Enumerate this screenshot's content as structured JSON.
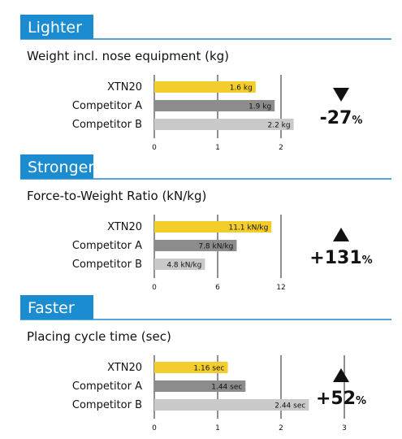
{
  "chart_data": [
    {
      "type": "bar",
      "title": "Lighter",
      "subtitle": "Weight incl. nose equipment (kg)",
      "categories": [
        "XTN20",
        "Competitor A",
        "Competitor B"
      ],
      "values": [
        1.6,
        1.9,
        2.2
      ],
      "value_labels": [
        "1.6 kg",
        "1.9 kg",
        "2.2 kg"
      ],
      "colors": [
        "#f3cd2c",
        "#8c8c8c",
        "#c9c9c9"
      ],
      "xlim": [
        0,
        2
      ],
      "xticks": [
        0,
        1,
        2
      ],
      "grid": true,
      "change": "-27",
      "change_unit": "%",
      "change_direction": "down"
    },
    {
      "type": "bar",
      "title": "Stronger",
      "subtitle": "Force-to-Weight Ratio (kN/kg)",
      "categories": [
        "XTN20",
        "Competitor A",
        "Competitor B"
      ],
      "values": [
        11.1,
        7.8,
        4.8
      ],
      "value_labels": [
        "11.1 kN/kg",
        "7.8 kN/kg",
        "4.8 kN/kg"
      ],
      "colors": [
        "#f3cd2c",
        "#8c8c8c",
        "#c9c9c9"
      ],
      "xlim": [
        0,
        12
      ],
      "xticks": [
        0,
        6,
        12
      ],
      "grid": true,
      "change": "+131",
      "change_unit": "%",
      "change_direction": "up"
    },
    {
      "type": "bar",
      "title": "Faster",
      "subtitle": "Placing cycle time (sec)",
      "categories": [
        "XTN20",
        "Competitor A",
        "Competitor B"
      ],
      "values": [
        1.16,
        1.44,
        2.44
      ],
      "value_labels": [
        "1.16 sec",
        "1.44 sec",
        "2.44 sec"
      ],
      "colors": [
        "#f3cd2c",
        "#8c8c8c",
        "#c9c9c9"
      ],
      "xlim": [
        0,
        3
      ],
      "xticks": [
        0,
        1,
        2,
        3
      ],
      "grid": true,
      "change": "+52",
      "change_unit": "%",
      "change_direction": "up"
    }
  ]
}
